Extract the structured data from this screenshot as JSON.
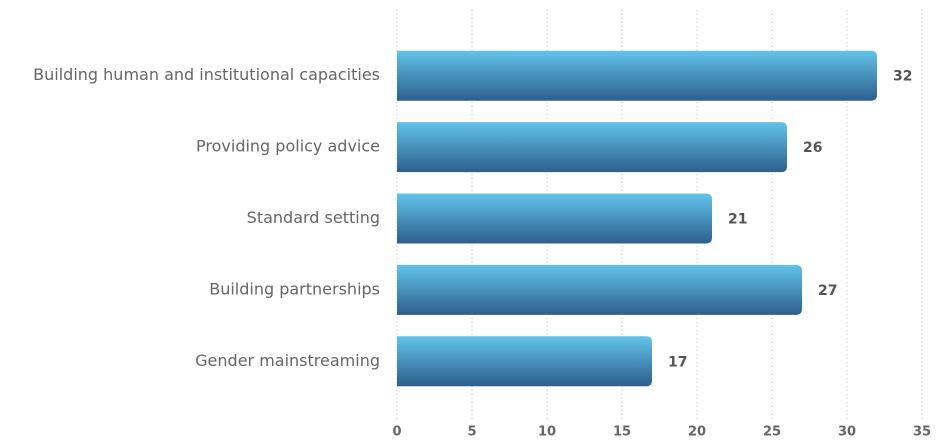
{
  "chart_data": {
    "type": "bar",
    "orientation": "horizontal",
    "categories": [
      "Building human and institutional capacities",
      "Providing policy advice",
      "Standard setting",
      "Building partnerships",
      "Gender mainstreaming"
    ],
    "values": [
      32,
      26,
      21,
      27,
      17
    ],
    "xlim": [
      0,
      35
    ],
    "xticks": [
      0,
      5,
      10,
      15,
      20,
      25,
      30,
      35
    ],
    "grid": true
  }
}
